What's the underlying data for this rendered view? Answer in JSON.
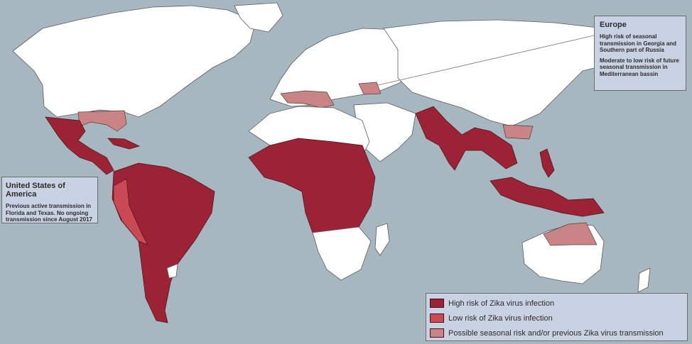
{
  "callouts": {
    "europe": {
      "title": "Europe",
      "lines": [
        "High risk of seasonal transmission in Georgia and Southern part of Russia",
        "Moderate to low risk of future seasonal transmission in Mediterranean bassin"
      ]
    },
    "usa": {
      "title": "United States of America",
      "text": "Previous active transmission in Florida and Texas. No ongoing transmission since August 2017"
    }
  },
  "legend": {
    "items": [
      {
        "label": "High risk of Zika virus infection",
        "color": "#9b2335"
      },
      {
        "label": "Low risk of Zika virus infection",
        "color": "#c94a55"
      },
      {
        "label": "Possible seasonal risk and/or previous Zika virus transmission",
        "color": "#c98485"
      }
    ]
  },
  "colors": {
    "ocean": "#a7b7c0",
    "land": "#ffffff",
    "callout_bg": "#c9d2e2"
  }
}
